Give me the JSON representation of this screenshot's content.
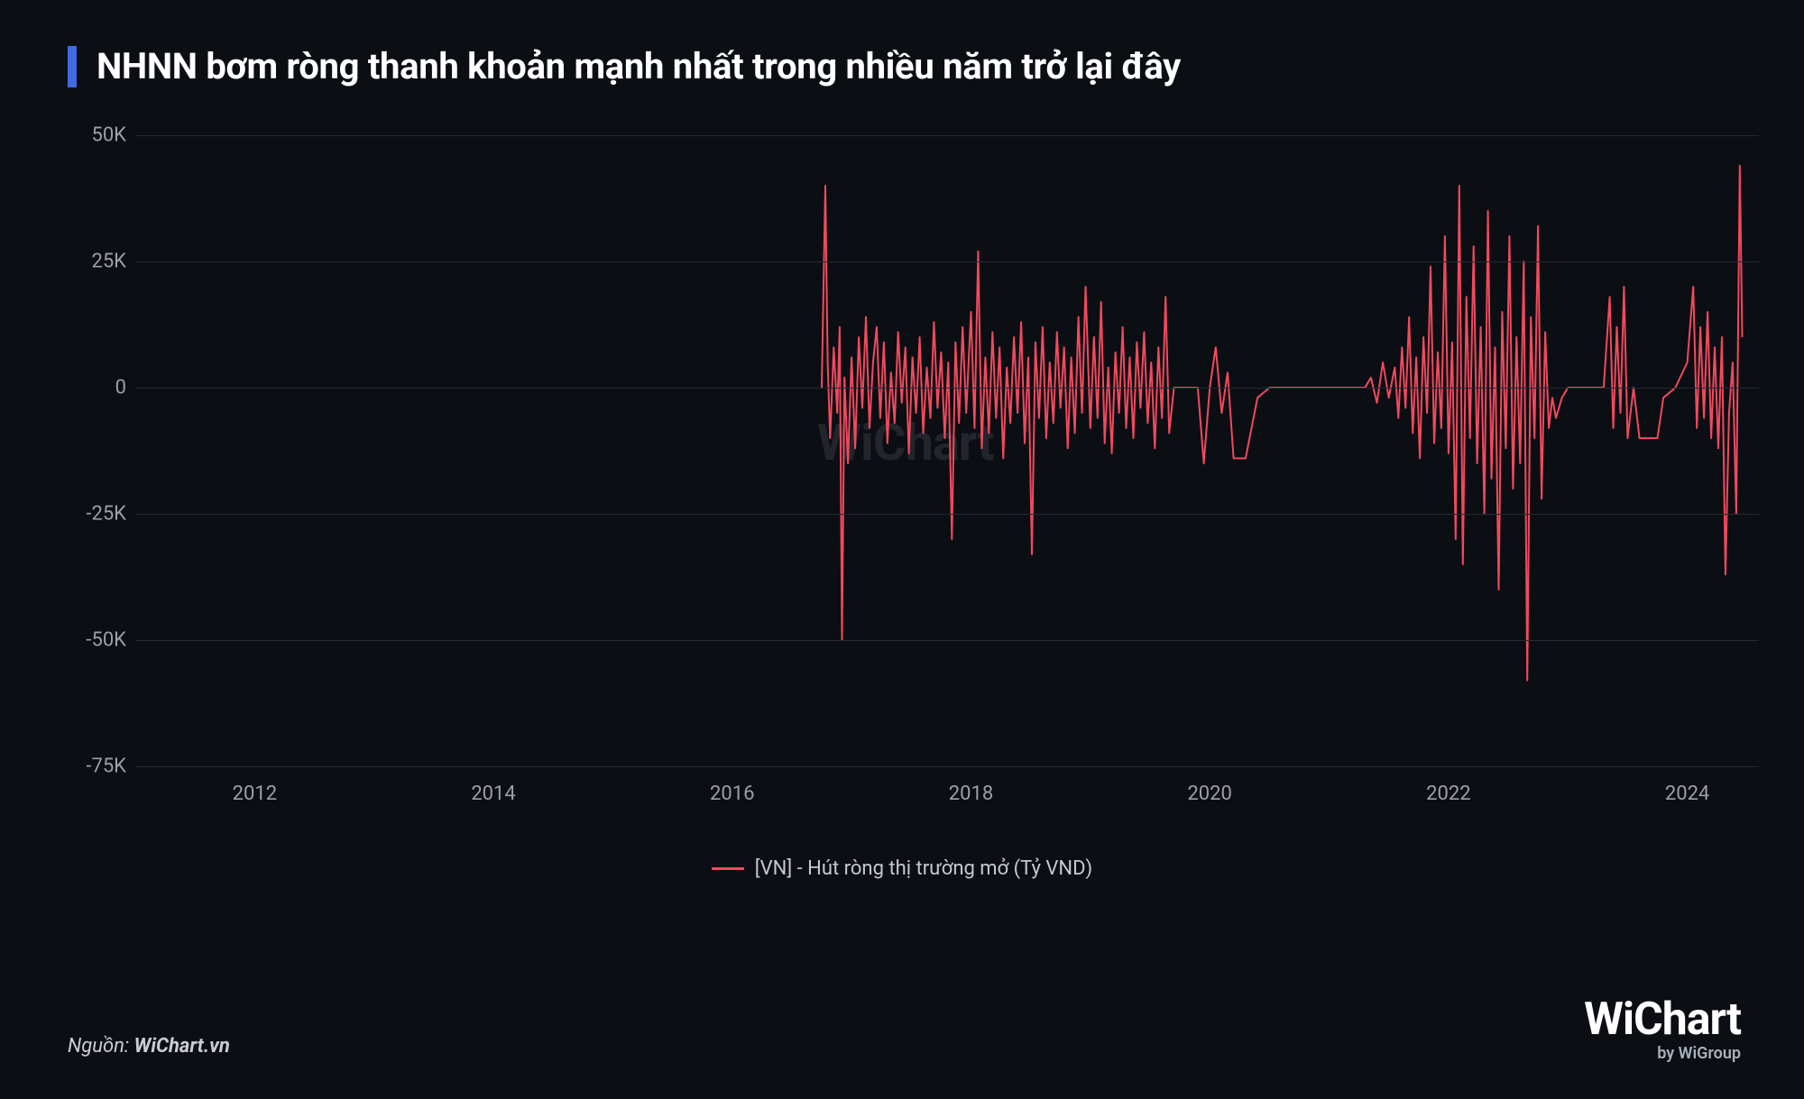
{
  "title": "NHNN bơm ròng thanh khoản mạnh nhất trong nhiều năm trở lại đây",
  "title_accent_color": "#4169e1",
  "watermark_text": "WiChart",
  "source_prefix": "Nguồn:",
  "source_value": "WiChart.vn",
  "brand_main": "WiChart",
  "brand_sub": "by WiGroup",
  "legend": {
    "label": "[VN] - Hút ròng thị trường mở (Tỷ VND)",
    "color": "#f04a5e"
  },
  "chart": {
    "type": "line",
    "background_color": "#0b0e13",
    "grid_color": "#252a33",
    "axis_label_color": "#9aa0ab",
    "series_color": "#f04a5e",
    "line_width": 2,
    "x_range": [
      2011,
      2024.6
    ],
    "y_range": [
      -75,
      50
    ],
    "y_ticks": [
      -75,
      -50,
      -25,
      0,
      25,
      50
    ],
    "y_tick_labels": [
      "-75K",
      "-50K",
      "-25K",
      "0",
      "25K",
      "50K"
    ],
    "x_ticks": [
      2012,
      2014,
      2016,
      2018,
      2020,
      2022,
      2024
    ],
    "x_tick_labels": [
      "2012",
      "2014",
      "2016",
      "2018",
      "2020",
      "2022",
      "2024"
    ],
    "title_fontsize": 40,
    "axis_fontsize": 22,
    "series": [
      {
        "x": 2016.75,
        "y": 0
      },
      {
        "x": 2016.78,
        "y": 40
      },
      {
        "x": 2016.8,
        "y": 5
      },
      {
        "x": 2016.82,
        "y": -10
      },
      {
        "x": 2016.85,
        "y": 8
      },
      {
        "x": 2016.88,
        "y": -5
      },
      {
        "x": 2016.9,
        "y": 12
      },
      {
        "x": 2016.92,
        "y": -50
      },
      {
        "x": 2016.94,
        "y": 2
      },
      {
        "x": 2016.97,
        "y": -15
      },
      {
        "x": 2017.0,
        "y": 6
      },
      {
        "x": 2017.03,
        "y": -12
      },
      {
        "x": 2017.06,
        "y": 10
      },
      {
        "x": 2017.09,
        "y": -4
      },
      {
        "x": 2017.12,
        "y": 14
      },
      {
        "x": 2017.15,
        "y": -8
      },
      {
        "x": 2017.18,
        "y": 5
      },
      {
        "x": 2017.21,
        "y": 12
      },
      {
        "x": 2017.24,
        "y": -6
      },
      {
        "x": 2017.27,
        "y": 9
      },
      {
        "x": 2017.3,
        "y": -11
      },
      {
        "x": 2017.33,
        "y": 3
      },
      {
        "x": 2017.36,
        "y": -7
      },
      {
        "x": 2017.39,
        "y": 11
      },
      {
        "x": 2017.42,
        "y": -3
      },
      {
        "x": 2017.45,
        "y": 8
      },
      {
        "x": 2017.48,
        "y": -13
      },
      {
        "x": 2017.51,
        "y": 6
      },
      {
        "x": 2017.54,
        "y": -5
      },
      {
        "x": 2017.57,
        "y": 10
      },
      {
        "x": 2017.6,
        "y": -9
      },
      {
        "x": 2017.63,
        "y": 4
      },
      {
        "x": 2017.66,
        "y": -6
      },
      {
        "x": 2017.69,
        "y": 13
      },
      {
        "x": 2017.72,
        "y": -4
      },
      {
        "x": 2017.75,
        "y": 7
      },
      {
        "x": 2017.78,
        "y": -10
      },
      {
        "x": 2017.81,
        "y": 5
      },
      {
        "x": 2017.84,
        "y": -30
      },
      {
        "x": 2017.87,
        "y": 9
      },
      {
        "x": 2017.9,
        "y": -7
      },
      {
        "x": 2017.93,
        "y": 12
      },
      {
        "x": 2017.96,
        "y": -5
      },
      {
        "x": 2018.0,
        "y": 15
      },
      {
        "x": 2018.03,
        "y": -8
      },
      {
        "x": 2018.06,
        "y": 27
      },
      {
        "x": 2018.09,
        "y": -12
      },
      {
        "x": 2018.12,
        "y": 6
      },
      {
        "x": 2018.15,
        "y": -9
      },
      {
        "x": 2018.18,
        "y": 11
      },
      {
        "x": 2018.21,
        "y": -6
      },
      {
        "x": 2018.24,
        "y": 8
      },
      {
        "x": 2018.27,
        "y": -14
      },
      {
        "x": 2018.3,
        "y": 4
      },
      {
        "x": 2018.33,
        "y": -7
      },
      {
        "x": 2018.36,
        "y": 10
      },
      {
        "x": 2018.39,
        "y": -5
      },
      {
        "x": 2018.42,
        "y": 13
      },
      {
        "x": 2018.45,
        "y": -11
      },
      {
        "x": 2018.48,
        "y": 6
      },
      {
        "x": 2018.51,
        "y": -33
      },
      {
        "x": 2018.54,
        "y": 9
      },
      {
        "x": 2018.57,
        "y": -6
      },
      {
        "x": 2018.6,
        "y": 12
      },
      {
        "x": 2018.63,
        "y": -10
      },
      {
        "x": 2018.66,
        "y": 5
      },
      {
        "x": 2018.69,
        "y": -7
      },
      {
        "x": 2018.72,
        "y": 11
      },
      {
        "x": 2018.75,
        "y": -4
      },
      {
        "x": 2018.78,
        "y": 8
      },
      {
        "x": 2018.81,
        "y": -12
      },
      {
        "x": 2018.84,
        "y": 6
      },
      {
        "x": 2018.87,
        "y": -9
      },
      {
        "x": 2018.9,
        "y": 14
      },
      {
        "x": 2018.93,
        "y": -5
      },
      {
        "x": 2018.96,
        "y": 20
      },
      {
        "x": 2019.0,
        "y": -8
      },
      {
        "x": 2019.03,
        "y": 10
      },
      {
        "x": 2019.06,
        "y": -6
      },
      {
        "x": 2019.09,
        "y": 17
      },
      {
        "x": 2019.12,
        "y": -11
      },
      {
        "x": 2019.15,
        "y": 4
      },
      {
        "x": 2019.18,
        "y": -13
      },
      {
        "x": 2019.21,
        "y": 7
      },
      {
        "x": 2019.24,
        "y": -5
      },
      {
        "x": 2019.27,
        "y": 12
      },
      {
        "x": 2019.3,
        "y": -8
      },
      {
        "x": 2019.33,
        "y": 6
      },
      {
        "x": 2019.36,
        "y": -10
      },
      {
        "x": 2019.39,
        "y": 9
      },
      {
        "x": 2019.42,
        "y": -4
      },
      {
        "x": 2019.45,
        "y": 11
      },
      {
        "x": 2019.48,
        "y": -7
      },
      {
        "x": 2019.51,
        "y": 5
      },
      {
        "x": 2019.54,
        "y": -12
      },
      {
        "x": 2019.57,
        "y": 8
      },
      {
        "x": 2019.6,
        "y": -6
      },
      {
        "x": 2019.63,
        "y": 18
      },
      {
        "x": 2019.66,
        "y": -9
      },
      {
        "x": 2019.7,
        "y": 0
      },
      {
        "x": 2019.9,
        "y": 0
      },
      {
        "x": 2019.95,
        "y": -15
      },
      {
        "x": 2020.0,
        "y": 0
      },
      {
        "x": 2020.05,
        "y": 8
      },
      {
        "x": 2020.1,
        "y": -5
      },
      {
        "x": 2020.15,
        "y": 3
      },
      {
        "x": 2020.2,
        "y": -14
      },
      {
        "x": 2020.3,
        "y": -14
      },
      {
        "x": 2020.4,
        "y": -2
      },
      {
        "x": 2020.5,
        "y": 0
      },
      {
        "x": 2021.3,
        "y": 0
      },
      {
        "x": 2021.35,
        "y": 2
      },
      {
        "x": 2021.4,
        "y": -3
      },
      {
        "x": 2021.45,
        "y": 5
      },
      {
        "x": 2021.5,
        "y": -2
      },
      {
        "x": 2021.55,
        "y": 4
      },
      {
        "x": 2021.58,
        "y": -6
      },
      {
        "x": 2021.61,
        "y": 8
      },
      {
        "x": 2021.64,
        "y": -4
      },
      {
        "x": 2021.67,
        "y": 14
      },
      {
        "x": 2021.7,
        "y": -9
      },
      {
        "x": 2021.73,
        "y": 6
      },
      {
        "x": 2021.76,
        "y": -14
      },
      {
        "x": 2021.79,
        "y": 10
      },
      {
        "x": 2021.82,
        "y": -5
      },
      {
        "x": 2021.85,
        "y": 24
      },
      {
        "x": 2021.88,
        "y": -11
      },
      {
        "x": 2021.91,
        "y": 7
      },
      {
        "x": 2021.94,
        "y": -8
      },
      {
        "x": 2021.97,
        "y": 30
      },
      {
        "x": 2022.0,
        "y": -13
      },
      {
        "x": 2022.03,
        "y": 9
      },
      {
        "x": 2022.06,
        "y": -30
      },
      {
        "x": 2022.09,
        "y": 40
      },
      {
        "x": 2022.12,
        "y": -35
      },
      {
        "x": 2022.15,
        "y": 18
      },
      {
        "x": 2022.18,
        "y": -10
      },
      {
        "x": 2022.21,
        "y": 28
      },
      {
        "x": 2022.24,
        "y": -15
      },
      {
        "x": 2022.27,
        "y": 12
      },
      {
        "x": 2022.3,
        "y": -25
      },
      {
        "x": 2022.33,
        "y": 35
      },
      {
        "x": 2022.36,
        "y": -18
      },
      {
        "x": 2022.39,
        "y": 8
      },
      {
        "x": 2022.42,
        "y": -40
      },
      {
        "x": 2022.45,
        "y": 15
      },
      {
        "x": 2022.48,
        "y": -12
      },
      {
        "x": 2022.51,
        "y": 30
      },
      {
        "x": 2022.54,
        "y": -20
      },
      {
        "x": 2022.57,
        "y": 10
      },
      {
        "x": 2022.6,
        "y": -15
      },
      {
        "x": 2022.63,
        "y": 25
      },
      {
        "x": 2022.66,
        "y": -58
      },
      {
        "x": 2022.69,
        "y": 14
      },
      {
        "x": 2022.72,
        "y": -10
      },
      {
        "x": 2022.75,
        "y": 32
      },
      {
        "x": 2022.78,
        "y": -22
      },
      {
        "x": 2022.81,
        "y": 11
      },
      {
        "x": 2022.84,
        "y": -8
      },
      {
        "x": 2022.87,
        "y": -2
      },
      {
        "x": 2022.9,
        "y": -6
      },
      {
        "x": 2022.95,
        "y": -2
      },
      {
        "x": 2023.0,
        "y": 0
      },
      {
        "x": 2023.3,
        "y": 0
      },
      {
        "x": 2023.35,
        "y": 18
      },
      {
        "x": 2023.38,
        "y": -8
      },
      {
        "x": 2023.41,
        "y": 12
      },
      {
        "x": 2023.44,
        "y": -5
      },
      {
        "x": 2023.47,
        "y": 20
      },
      {
        "x": 2023.5,
        "y": -10
      },
      {
        "x": 2023.55,
        "y": 0
      },
      {
        "x": 2023.6,
        "y": -10
      },
      {
        "x": 2023.75,
        "y": -10
      },
      {
        "x": 2023.8,
        "y": -2
      },
      {
        "x": 2023.9,
        "y": 0
      },
      {
        "x": 2024.0,
        "y": 5
      },
      {
        "x": 2024.05,
        "y": 20
      },
      {
        "x": 2024.08,
        "y": -8
      },
      {
        "x": 2024.11,
        "y": 12
      },
      {
        "x": 2024.14,
        "y": -6
      },
      {
        "x": 2024.17,
        "y": 15
      },
      {
        "x": 2024.2,
        "y": -10
      },
      {
        "x": 2024.23,
        "y": 8
      },
      {
        "x": 2024.26,
        "y": -12
      },
      {
        "x": 2024.29,
        "y": 10
      },
      {
        "x": 2024.32,
        "y": -37
      },
      {
        "x": 2024.35,
        "y": -5
      },
      {
        "x": 2024.38,
        "y": 5
      },
      {
        "x": 2024.41,
        "y": -25
      },
      {
        "x": 2024.44,
        "y": 44
      },
      {
        "x": 2024.46,
        "y": 10
      }
    ]
  }
}
